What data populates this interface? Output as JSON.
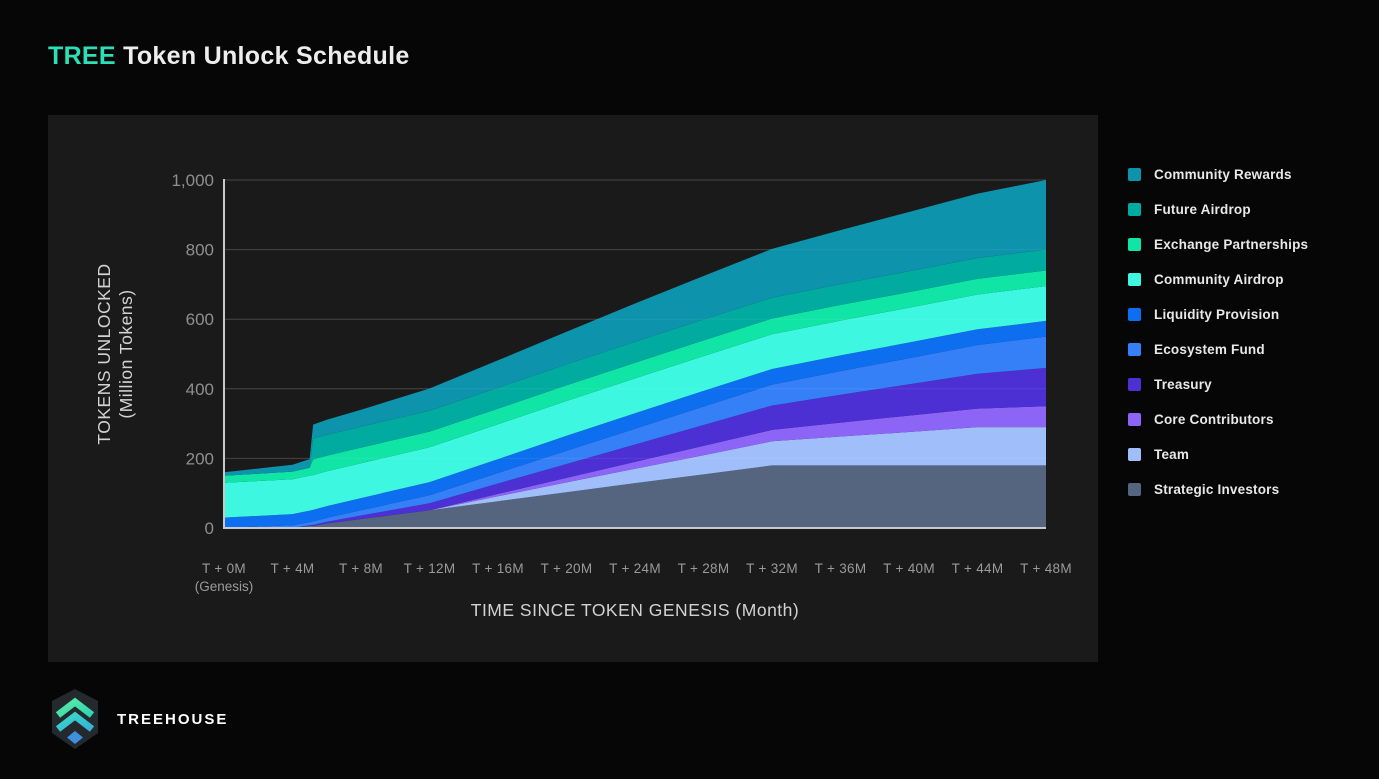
{
  "title": {
    "highlight": "TREE",
    "rest": " Token Unlock Schedule"
  },
  "brand": {
    "name": "TREEHOUSE"
  },
  "colors": {
    "accent": "#2be0b6",
    "page_bg": "#060606",
    "panel_bg": "#1a1a1a",
    "grid": "#383838",
    "grid_overlay": "rgba(255,255,255,0.07)",
    "axis_line": "#c9c9c9",
    "y_tick_text": "#8f8f8f",
    "x_tick_text": "#9a9a9a",
    "axis_title_text": "#d2d2d2",
    "legend_text": "#e8e8e8"
  },
  "chart_data": {
    "type": "area",
    "stacked": true,
    "title": "TREE Token Unlock Schedule",
    "xlabel": "TIME SINCE TOKEN GENESIS (Month)",
    "ylabel_line1": "TOKENS UNLOCKED",
    "ylabel_line2": "(Million Tokens)",
    "units": "Million Tokens",
    "xlim_months": [
      0,
      48
    ],
    "ylim": [
      0,
      1000
    ],
    "grid": "horizontal",
    "legend_position": "right",
    "x_months": [
      0,
      4,
      5,
      5.2,
      6,
      8,
      12,
      16,
      20,
      24,
      28,
      32,
      36,
      40,
      44,
      48
    ],
    "x_ticks": [
      {
        "month": 0,
        "label": "T + 0M",
        "sub": "(Genesis)"
      },
      {
        "month": 4,
        "label": "T + 4M"
      },
      {
        "month": 8,
        "label": "T + 8M"
      },
      {
        "month": 12,
        "label": "T + 12M"
      },
      {
        "month": 16,
        "label": "T + 16M"
      },
      {
        "month": 20,
        "label": "T + 20M"
      },
      {
        "month": 24,
        "label": "T + 24M"
      },
      {
        "month": 28,
        "label": "T + 28M"
      },
      {
        "month": 32,
        "label": "T + 32M"
      },
      {
        "month": 36,
        "label": "T + 36M"
      },
      {
        "month": 40,
        "label": "T + 40M"
      },
      {
        "month": 44,
        "label": "T + 44M"
      },
      {
        "month": 48,
        "label": "T + 48M"
      }
    ],
    "y_ticks": [
      {
        "value": 0,
        "label": "0"
      },
      {
        "value": 200,
        "label": "200"
      },
      {
        "value": 400,
        "label": "400"
      },
      {
        "value": 600,
        "label": "600"
      },
      {
        "value": 800,
        "label": "800"
      },
      {
        "value": 1000,
        "label": "1,000"
      }
    ],
    "series": [
      {
        "name": "Community Rewards",
        "color": "#0d93ac",
        "values": [
          10,
          20,
          25,
          40,
          43,
          49,
          64,
          79,
          94,
          110,
          125,
          140,
          155,
          170,
          185,
          200
        ]
      },
      {
        "name": "Future Airdrop",
        "color": "#02ab9f",
        "values": [
          0,
          0,
          0,
          60,
          60,
          60,
          60,
          60,
          60,
          60,
          60,
          60,
          60,
          60,
          60,
          60
        ]
      },
      {
        "name": "Exchange Partnerships",
        "color": "#10e5a5",
        "values": [
          20,
          22,
          23,
          45,
          45,
          45,
          45,
          45,
          45,
          45,
          45,
          45,
          45,
          45,
          45,
          45
        ]
      },
      {
        "name": "Community Airdrop",
        "color": "#3df7e1",
        "values": [
          100,
          100,
          100,
          100,
          100,
          100,
          100,
          100,
          100,
          100,
          100,
          100,
          100,
          100,
          100,
          100
        ]
      },
      {
        "name": "Liquidity Provision",
        "color": "#0d6ef0",
        "values": [
          30,
          32,
          33,
          33,
          34,
          35,
          38,
          40,
          43,
          45,
          45,
          45,
          45,
          45,
          45,
          45
        ]
      },
      {
        "name": "Ecosystem Fund",
        "color": "#3680f7",
        "values": [
          0,
          8,
          9,
          10,
          11,
          15,
          23,
          30,
          38,
          45,
          53,
          60,
          68,
          75,
          83,
          90
        ]
      },
      {
        "name": "Treasury",
        "color": "#4c30d4",
        "values": [
          0,
          0,
          2,
          3,
          5,
          10,
          20,
          30,
          40,
          50,
          60,
          70,
          80,
          90,
          100,
          110
        ]
      },
      {
        "name": "Core Contributors",
        "color": "#8c64f6",
        "values": [
          0,
          0,
          0,
          0,
          0,
          0,
          0,
          7,
          13,
          20,
          27,
          33,
          40,
          47,
          53,
          60
        ]
      },
      {
        "name": "Team",
        "color": "#a0bffa",
        "values": [
          0,
          0,
          0,
          0,
          0,
          0,
          0,
          14,
          28,
          41,
          55,
          69,
          83,
          96,
          110,
          110
        ]
      },
      {
        "name": "Strategic Investors",
        "color": "#55647f",
        "values": [
          0,
          0,
          6,
          6,
          13,
          26,
          51,
          77,
          103,
          129,
          154,
          180,
          180,
          180,
          180,
          180
        ]
      }
    ]
  }
}
